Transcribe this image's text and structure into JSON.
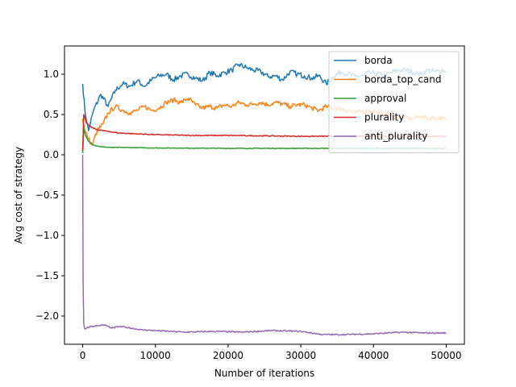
{
  "chart_data": {
    "type": "line",
    "title": "",
    "xlabel": "Number of iterations",
    "ylabel": "Avg cost of strategy",
    "xlim": [
      -2500,
      52500
    ],
    "ylim": [
      -2.35,
      1.35
    ],
    "x_ticks": [
      0,
      10000,
      20000,
      30000,
      40000,
      50000
    ],
    "y_ticks": [
      -2.0,
      -1.5,
      -1.0,
      -0.5,
      0.0,
      0.5,
      1.0
    ],
    "grid": false,
    "legend_position": "top-right",
    "series": [
      {
        "name": "borda",
        "color": "#1f77b4",
        "points": [
          [
            0,
            0.88
          ],
          [
            300,
            0.55
          ],
          [
            800,
            0.3
          ],
          [
            1500,
            0.55
          ],
          [
            2500,
            0.75
          ],
          [
            3500,
            0.6
          ],
          [
            4500,
            0.8
          ],
          [
            5500,
            0.88
          ],
          [
            6500,
            0.85
          ],
          [
            7500,
            0.92
          ],
          [
            8500,
            0.85
          ],
          [
            9500,
            0.93
          ],
          [
            10500,
            0.98
          ],
          [
            11500,
            1.0
          ],
          [
            12500,
            0.93
          ],
          [
            13500,
            0.98
          ],
          [
            14500,
            1.0
          ],
          [
            15500,
            0.95
          ],
          [
            16500,
            0.92
          ],
          [
            17500,
            1.02
          ],
          [
            18500,
            0.98
          ],
          [
            19500,
            1.02
          ],
          [
            20500,
            1.05
          ],
          [
            21500,
            1.12
          ],
          [
            22500,
            1.08
          ],
          [
            23500,
            1.05
          ],
          [
            24500,
            1.03
          ],
          [
            25500,
            0.97
          ],
          [
            26500,
            0.98
          ],
          [
            27500,
            0.93
          ],
          [
            28500,
            1.03
          ],
          [
            29500,
            1.0
          ],
          [
            30500,
            0.98
          ],
          [
            31500,
            0.95
          ],
          [
            32500,
            0.98
          ],
          [
            33500,
            0.88
          ],
          [
            34500,
            0.97
          ],
          [
            35500,
            1.03
          ],
          [
            36500,
            1.0
          ],
          [
            37500,
            0.97
          ],
          [
            38500,
            0.98
          ],
          [
            39500,
            1.02
          ],
          [
            40500,
            1.0
          ],
          [
            41500,
            0.98
          ],
          [
            42500,
            1.02
          ],
          [
            43500,
            1.05
          ],
          [
            44500,
            1.05
          ],
          [
            45500,
            1.02
          ],
          [
            46500,
            1.0
          ],
          [
            47500,
            1.05
          ],
          [
            48500,
            1.03
          ],
          [
            49500,
            1.05
          ],
          [
            50000,
            1.03
          ]
        ]
      },
      {
        "name": "borda_top_cand",
        "color": "#ff7f0e",
        "points": [
          [
            0,
            0.45
          ],
          [
            300,
            0.3
          ],
          [
            800,
            0.2
          ],
          [
            1300,
            0.12
          ],
          [
            2000,
            0.3
          ],
          [
            2800,
            0.38
          ],
          [
            3500,
            0.52
          ],
          [
            4500,
            0.6
          ],
          [
            5500,
            0.55
          ],
          [
            6500,
            0.52
          ],
          [
            7500,
            0.55
          ],
          [
            8500,
            0.6
          ],
          [
            9500,
            0.55
          ],
          [
            10500,
            0.58
          ],
          [
            11500,
            0.65
          ],
          [
            12500,
            0.68
          ],
          [
            13500,
            0.65
          ],
          [
            14500,
            0.7
          ],
          [
            15500,
            0.62
          ],
          [
            16500,
            0.58
          ],
          [
            17500,
            0.6
          ],
          [
            18500,
            0.58
          ],
          [
            19500,
            0.62
          ],
          [
            20500,
            0.6
          ],
          [
            21500,
            0.65
          ],
          [
            22500,
            0.62
          ],
          [
            23500,
            0.63
          ],
          [
            24500,
            0.65
          ],
          [
            25500,
            0.62
          ],
          [
            26500,
            0.65
          ],
          [
            27500,
            0.63
          ],
          [
            28500,
            0.6
          ],
          [
            29500,
            0.62
          ],
          [
            30500,
            0.62
          ],
          [
            31500,
            0.58
          ],
          [
            32500,
            0.55
          ],
          [
            33500,
            0.6
          ],
          [
            34500,
            0.58
          ],
          [
            35500,
            0.57
          ],
          [
            36500,
            0.55
          ],
          [
            37500,
            0.52
          ],
          [
            38500,
            0.54
          ],
          [
            39500,
            0.55
          ],
          [
            40500,
            0.52
          ],
          [
            41500,
            0.5
          ],
          [
            42500,
            0.48
          ],
          [
            43500,
            0.47
          ],
          [
            44500,
            0.46
          ],
          [
            45500,
            0.45
          ],
          [
            46500,
            0.48
          ],
          [
            47500,
            0.45
          ],
          [
            48500,
            0.46
          ],
          [
            49500,
            0.45
          ],
          [
            50000,
            0.44
          ]
        ]
      },
      {
        "name": "approval",
        "color": "#2ca02c",
        "points": [
          [
            0,
            0.02
          ],
          [
            150,
            0.32
          ],
          [
            400,
            0.24
          ],
          [
            800,
            0.17
          ],
          [
            1500,
            0.12
          ],
          [
            2500,
            0.1
          ],
          [
            4000,
            0.09
          ],
          [
            6000,
            0.09
          ],
          [
            10000,
            0.085
          ],
          [
            20000,
            0.08
          ],
          [
            30000,
            0.08
          ],
          [
            40000,
            0.08
          ],
          [
            50000,
            0.08
          ]
        ]
      },
      {
        "name": "plurality",
        "color": "#d62728",
        "points": [
          [
            0,
            0.05
          ],
          [
            150,
            0.5
          ],
          [
            500,
            0.4
          ],
          [
            1000,
            0.35
          ],
          [
            2000,
            0.31
          ],
          [
            3500,
            0.29
          ],
          [
            5000,
            0.27
          ],
          [
            7500,
            0.26
          ],
          [
            10000,
            0.25
          ],
          [
            15000,
            0.24
          ],
          [
            20000,
            0.24
          ],
          [
            25000,
            0.235
          ],
          [
            30000,
            0.23
          ],
          [
            35000,
            0.23
          ],
          [
            40000,
            0.23
          ],
          [
            45000,
            0.23
          ],
          [
            50000,
            0.23
          ]
        ]
      },
      {
        "name": "anti_plurality",
        "color": "#9467bd",
        "points": [
          [
            0,
            0.0
          ],
          [
            60,
            -1.6
          ],
          [
            150,
            -2.1
          ],
          [
            300,
            -2.16
          ],
          [
            1000,
            -2.13
          ],
          [
            2000,
            -2.12
          ],
          [
            3000,
            -2.11
          ],
          [
            4000,
            -2.15
          ],
          [
            5000,
            -2.13
          ],
          [
            6000,
            -2.14
          ],
          [
            8000,
            -2.17
          ],
          [
            10000,
            -2.18
          ],
          [
            14000,
            -2.2
          ],
          [
            18000,
            -2.19
          ],
          [
            22000,
            -2.2
          ],
          [
            26000,
            -2.18
          ],
          [
            30000,
            -2.19
          ],
          [
            33000,
            -2.23
          ],
          [
            36000,
            -2.23
          ],
          [
            40000,
            -2.22
          ],
          [
            44000,
            -2.2
          ],
          [
            47000,
            -2.21
          ],
          [
            50000,
            -2.21
          ]
        ]
      }
    ]
  }
}
